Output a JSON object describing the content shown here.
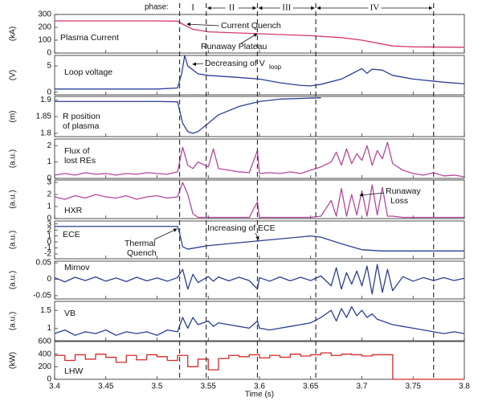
{
  "chart_data": [
    {
      "type": "line",
      "ylabel": "(kA)",
      "annotations": [
        "Plasma Current",
        "Current Quench",
        "Runaway Plateau"
      ],
      "color": "#d6376b",
      "ylim": [
        0,
        300
      ],
      "yticks": [
        0,
        100,
        200,
        300
      ],
      "x": [
        3.4,
        3.45,
        3.5,
        3.52,
        3.525,
        3.535,
        3.55,
        3.6,
        3.65,
        3.68,
        3.7,
        3.72,
        3.73,
        3.75,
        3.8
      ],
      "values": [
        250,
        250,
        250,
        248,
        225,
        185,
        165,
        150,
        135,
        120,
        100,
        70,
        55,
        48,
        45
      ]
    },
    {
      "type": "line",
      "ylabel": "(V)",
      "annotations": [
        "Loop voltage",
        "Decreasing of V",
        "loop"
      ],
      "color": "#2b3f94",
      "ylim": [
        -0.5,
        7
      ],
      "yticks": [
        0,
        5
      ],
      "x": [
        3.4,
        3.45,
        3.5,
        3.52,
        3.524,
        3.527,
        3.53,
        3.54,
        3.55,
        3.58,
        3.6,
        3.62,
        3.64,
        3.65,
        3.66,
        3.68,
        3.69,
        3.7,
        3.705,
        3.71,
        3.72,
        3.73,
        3.75,
        3.78,
        3.8
      ],
      "values": [
        0.6,
        0.6,
        0.6,
        0.8,
        3.5,
        7,
        5,
        3.5,
        3.2,
        2.8,
        2.5,
        1.8,
        1.3,
        1.2,
        1.5,
        2.5,
        3.5,
        4.5,
        3.6,
        4.4,
        4.2,
        3.2,
        2.5,
        1.9,
        1.6
      ]
    },
    {
      "type": "line",
      "ylabel": "(m)",
      "annotations": [
        "R position",
        "of plasma"
      ],
      "color": "#2b3f94",
      "ylim": [
        1.79,
        1.91
      ],
      "yticks": [
        1.8,
        1.85,
        1.9
      ],
      "x": [
        3.4,
        3.45,
        3.5,
        3.52,
        3.525,
        3.53,
        3.535,
        3.54,
        3.55,
        3.56,
        3.58,
        3.6,
        3.62,
        3.65,
        3.66
      ],
      "values": [
        1.895,
        1.895,
        1.895,
        1.894,
        1.83,
        1.805,
        1.8,
        1.805,
        1.83,
        1.855,
        1.88,
        1.895,
        1.902,
        1.905,
        1.906
      ]
    },
    {
      "type": "line",
      "ylabel": "(a.u.)",
      "annotations": [
        "Flux of",
        "lost REs"
      ],
      "color": "#b5489a",
      "ylim": [
        0,
        2.4
      ],
      "yticks": [
        0,
        1,
        2
      ],
      "x": [
        3.4,
        3.41,
        3.42,
        3.43,
        3.44,
        3.45,
        3.46,
        3.47,
        3.48,
        3.49,
        3.5,
        3.51,
        3.52,
        3.525,
        3.53,
        3.535,
        3.54,
        3.55,
        3.555,
        3.56,
        3.57,
        3.58,
        3.59,
        3.598,
        3.6,
        3.61,
        3.62,
        3.63,
        3.64,
        3.65,
        3.66,
        3.67,
        3.675,
        3.68,
        3.685,
        3.69,
        3.695,
        3.7,
        3.705,
        3.71,
        3.715,
        3.72,
        3.725,
        3.73,
        3.74,
        3.75,
        3.76,
        3.77,
        3.78,
        3.79,
        3.8
      ],
      "values": [
        0.2,
        0.3,
        0.2,
        0.35,
        0.25,
        0.3,
        0.2,
        0.3,
        0.25,
        0.35,
        0.3,
        0.25,
        0.4,
        1.9,
        0.8,
        0.6,
        1.0,
        0.7,
        1.8,
        0.6,
        0.5,
        0.4,
        0.35,
        1.7,
        0.3,
        0.35,
        0.3,
        0.4,
        0.3,
        0.5,
        0.7,
        1.0,
        1.6,
        0.8,
        1.8,
        0.9,
        1.5,
        1.1,
        2.0,
        0.8,
        1.7,
        1.2,
        2.2,
        0.9,
        0.5,
        0.3,
        0.2,
        0.35,
        0.15,
        0.2,
        0.1
      ]
    },
    {
      "type": "line",
      "ylabel": "(a.u.)",
      "annotations": [
        "HXR",
        "Runaway",
        "Loss"
      ],
      "color": "#b5489a",
      "ylim": [
        0,
        3.2
      ],
      "yticks": [
        0,
        1,
        2,
        3
      ],
      "x": [
        3.4,
        3.41,
        3.42,
        3.43,
        3.44,
        3.45,
        3.46,
        3.47,
        3.48,
        3.49,
        3.5,
        3.51,
        3.52,
        3.525,
        3.53,
        3.535,
        3.54,
        3.55,
        3.555,
        3.56,
        3.57,
        3.58,
        3.59,
        3.598,
        3.6,
        3.61,
        3.62,
        3.63,
        3.64,
        3.65,
        3.66,
        3.67,
        3.675,
        3.68,
        3.685,
        3.69,
        3.695,
        3.7,
        3.705,
        3.71,
        3.715,
        3.72,
        3.725,
        3.73,
        3.74,
        3.75,
        3.76,
        3.77,
        3.78,
        3.79,
        3.8
      ],
      "values": [
        1.8,
        1.6,
        1.9,
        1.7,
        2.0,
        1.8,
        1.7,
        1.9,
        1.6,
        1.8,
        1.9,
        1.7,
        1.8,
        3.0,
        2.0,
        0.4,
        0.1,
        0.1,
        0.1,
        0.1,
        0.1,
        0.1,
        0.1,
        1.4,
        0.1,
        0.1,
        0.1,
        0.1,
        0.1,
        0.1,
        0.2,
        1.5,
        0.2,
        2.5,
        0.2,
        2.0,
        0.3,
        2.3,
        0.2,
        2.8,
        0.3,
        2.6,
        0.2,
        0.2,
        0.1,
        0.1,
        0.1,
        0.1,
        0.1,
        0.1,
        0.1
      ]
    },
    {
      "type": "line",
      "ylabel": "(a.u.)",
      "annotations": [
        "ECE",
        "Thermal",
        "Quench",
        "Increasing of ECE"
      ],
      "color": "#2b3f94",
      "ylim": [
        -2.8,
        3.5
      ],
      "yticks": [
        -2,
        -1,
        0,
        1,
        2,
        3
      ],
      "x": [
        3.4,
        3.45,
        3.5,
        3.52,
        3.522,
        3.525,
        3.53,
        3.55,
        3.6,
        3.65,
        3.66,
        3.68,
        3.7,
        3.72,
        3.75,
        3.8
      ],
      "values": [
        2.6,
        2.6,
        2.6,
        2.6,
        1.5,
        -0.8,
        -1.2,
        -0.6,
        0.2,
        1.0,
        0.8,
        -0.3,
        -1.3,
        -1.5,
        -1.5,
        -1.5
      ]
    },
    {
      "type": "line",
      "ylabel": "(a.u.)",
      "annotations": [
        "Mirnov"
      ],
      "color": "#2b3f94",
      "ylim": [
        -0.06,
        0.055
      ],
      "yticks": [
        -0.05,
        0,
        0.05
      ],
      "x": [
        3.4,
        3.41,
        3.42,
        3.43,
        3.44,
        3.45,
        3.46,
        3.47,
        3.48,
        3.49,
        3.5,
        3.51,
        3.52,
        3.525,
        3.53,
        3.535,
        3.54,
        3.55,
        3.555,
        3.56,
        3.57,
        3.58,
        3.59,
        3.598,
        3.6,
        3.61,
        3.62,
        3.63,
        3.64,
        3.65,
        3.66,
        3.67,
        3.675,
        3.68,
        3.685,
        3.69,
        3.695,
        3.7,
        3.705,
        3.71,
        3.715,
        3.72,
        3.725,
        3.73,
        3.74,
        3.75,
        3.76,
        3.77,
        3.78,
        3.79,
        3.8
      ],
      "values": [
        0.005,
        -0.008,
        0.006,
        -0.004,
        0.007,
        -0.006,
        0.004,
        -0.007,
        0.006,
        -0.005,
        0.004,
        -0.006,
        0.005,
        0.03,
        -0.03,
        0.015,
        -0.01,
        0.008,
        -0.006,
        0.007,
        -0.005,
        0.006,
        -0.004,
        -0.03,
        0.005,
        -0.006,
        0.007,
        -0.005,
        0.006,
        -0.004,
        0.01,
        -0.02,
        0.035,
        -0.03,
        0.02,
        -0.015,
        0.025,
        -0.02,
        0.04,
        -0.045,
        0.045,
        -0.04,
        0.03,
        -0.035,
        0.008,
        -0.006,
        0.005,
        -0.004,
        0.005,
        -0.004,
        0.003
      ]
    },
    {
      "type": "line",
      "ylabel": "(a.u.)",
      "annotations": [
        "VB"
      ],
      "color": "#2b3f94",
      "ylim": [
        0.65,
        1.75
      ],
      "yticks": [
        1,
        1.5
      ],
      "x": [
        3.4,
        3.41,
        3.42,
        3.43,
        3.44,
        3.45,
        3.46,
        3.47,
        3.48,
        3.49,
        3.5,
        3.51,
        3.52,
        3.525,
        3.53,
        3.535,
        3.54,
        3.55,
        3.555,
        3.56,
        3.57,
        3.58,
        3.59,
        3.598,
        3.6,
        3.61,
        3.62,
        3.63,
        3.64,
        3.65,
        3.66,
        3.67,
        3.675,
        3.68,
        3.685,
        3.69,
        3.695,
        3.7,
        3.705,
        3.71,
        3.715,
        3.72,
        3.725,
        3.73,
        3.74,
        3.75,
        3.76,
        3.77,
        3.78,
        3.79,
        3.8
      ],
      "values": [
        0.85,
        0.95,
        0.8,
        0.9,
        0.85,
        0.95,
        0.8,
        0.9,
        0.85,
        0.9,
        0.8,
        0.95,
        0.9,
        1.3,
        1.0,
        1.3,
        1.1,
        1.2,
        1.05,
        1.15,
        1.1,
        1.05,
        1.0,
        1.2,
        1.0,
        0.95,
        1.0,
        1.05,
        1.1,
        1.15,
        1.3,
        1.5,
        1.2,
        1.55,
        1.3,
        1.6,
        1.35,
        1.5,
        1.3,
        1.4,
        1.25,
        1.2,
        1.15,
        1.1,
        1.05,
        1.0,
        0.95,
        0.9,
        0.85,
        0.9,
        0.85
      ]
    },
    {
      "type": "line",
      "ylabel": "(kW)",
      "annotations": [
        "LHW"
      ],
      "color": "#d42a2a",
      "step": true,
      "ylim": [
        0,
        600
      ],
      "yticks": [
        0,
        200,
        400,
        600
      ],
      "xlabel": "Time (s)",
      "xlim": [
        3.4,
        3.8
      ],
      "xticks": [
        3.4,
        3.45,
        3.5,
        3.55,
        3.6,
        3.65,
        3.7,
        3.75,
        3.8
      ],
      "x": [
        3.4,
        3.41,
        3.42,
        3.43,
        3.44,
        3.45,
        3.46,
        3.47,
        3.48,
        3.49,
        3.5,
        3.51,
        3.52,
        3.53,
        3.54,
        3.55,
        3.56,
        3.57,
        3.58,
        3.59,
        3.6,
        3.61,
        3.62,
        3.63,
        3.64,
        3.65,
        3.66,
        3.67,
        3.68,
        3.69,
        3.7,
        3.71,
        3.72,
        3.73,
        3.7301,
        3.74,
        3.75,
        3.76,
        3.77,
        3.78,
        3.79,
        3.8
      ],
      "values": [
        380,
        300,
        390,
        320,
        400,
        350,
        270,
        380,
        310,
        390,
        360,
        300,
        380,
        200,
        320,
        150,
        330,
        380,
        360,
        390,
        340,
        380,
        350,
        400,
        370,
        390,
        420,
        380,
        400,
        390,
        370,
        390,
        390,
        390,
        0,
        0,
        0,
        0,
        0,
        0,
        0,
        0
      ]
    }
  ],
  "phases": {
    "label": "phase:",
    "names": [
      "I",
      "II",
      "III",
      "IV"
    ],
    "boundaries": [
      3.522,
      3.548,
      3.598,
      3.655,
      3.77
    ]
  }
}
